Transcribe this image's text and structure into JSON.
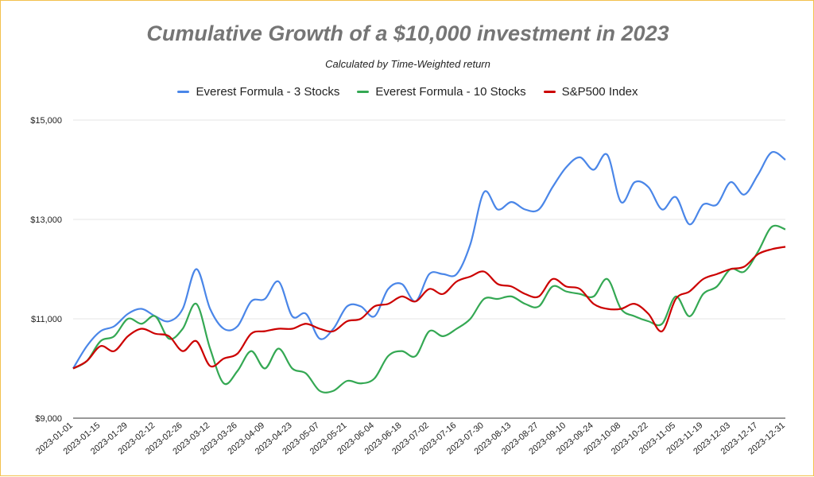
{
  "chart_data": {
    "type": "line",
    "title": "Cumulative Growth of a $10,000 investment in 2023",
    "subtitle": "Calculated by Time-Weighted return",
    "xlabel": "",
    "ylabel": "",
    "ylim": [
      9000,
      15000
    ],
    "yticks": [
      "$9,000",
      "$11,000",
      "$13,000",
      "$15,000"
    ],
    "ytick_values": [
      9000,
      11000,
      13000,
      15000
    ],
    "grid": true,
    "legend_position": "top",
    "x_tick_labels": [
      "2023-01-01",
      "2023-01-15",
      "2023-01-29",
      "2023-02-12",
      "2023-02-26",
      "2023-03-12",
      "2023-03-26",
      "2023-04-09",
      "2023-04-23",
      "2023-05-07",
      "2023-05-21",
      "2023-06-04",
      "2023-06-18",
      "2023-07-02",
      "2023-07-16",
      "2023-07-30",
      "2023-08-13",
      "2023-08-27",
      "2023-09-10",
      "2023-09-24",
      "2023-10-08",
      "2023-10-22",
      "2023-11-05",
      "2023-11-19",
      "2023-12-03",
      "2023-12-17",
      "2023-12-31"
    ],
    "x_weeks": [
      0,
      1,
      2,
      3,
      4,
      5,
      6,
      7,
      8,
      9,
      10,
      11,
      12,
      13,
      14,
      15,
      16,
      17,
      18,
      19,
      20,
      21,
      22,
      23,
      24,
      25,
      26,
      27,
      28,
      29,
      30,
      31,
      32,
      33,
      34,
      35,
      36,
      37,
      38,
      39,
      40,
      41,
      42,
      43,
      44,
      45,
      46,
      47,
      48,
      49,
      50,
      51,
      52
    ],
    "series": [
      {
        "name": "Everest Formula - 3 Stocks",
        "color": "#4a86e8",
        "values": [
          10000,
          10450,
          10750,
          10850,
          11100,
          11200,
          11050,
          10950,
          11200,
          12000,
          11200,
          10800,
          10850,
          11350,
          11400,
          11750,
          11050,
          11100,
          10600,
          10800,
          11250,
          11250,
          11050,
          11600,
          11700,
          11350,
          11900,
          11900,
          11900,
          12500,
          13550,
          13200,
          13350,
          13200,
          13200,
          13650,
          14050,
          14250,
          14000,
          14300,
          13350,
          13750,
          13650,
          13200,
          13450,
          12900,
          13300,
          13300,
          13750,
          13500,
          13900,
          14350,
          14200
        ]
      },
      {
        "name": "Everest Formula - 10 Stocks",
        "color": "#34a853",
        "values": [
          10000,
          10150,
          10550,
          10650,
          11000,
          10900,
          11050,
          10600,
          10800,
          11300,
          10400,
          9700,
          9950,
          10350,
          10000,
          10400,
          10000,
          9900,
          9550,
          9550,
          9750,
          9700,
          9800,
          10250,
          10350,
          10250,
          10750,
          10650,
          10800,
          11000,
          11400,
          11400,
          11450,
          11300,
          11250,
          11650,
          11550,
          11500,
          11450,
          11800,
          11200,
          11050,
          10950,
          10900,
          11450,
          11050,
          11500,
          11650,
          12000,
          11950,
          12350,
          12850,
          12800
        ]
      },
      {
        "name": "S&P500 Index",
        "color": "#cc0000",
        "values": [
          10000,
          10150,
          10450,
          10350,
          10650,
          10800,
          10700,
          10650,
          10350,
          10550,
          10050,
          10200,
          10300,
          10700,
          10750,
          10800,
          10800,
          10900,
          10800,
          10750,
          10950,
          11000,
          11250,
          11300,
          11450,
          11350,
          11600,
          11500,
          11750,
          11850,
          11950,
          11700,
          11650,
          11500,
          11450,
          11800,
          11650,
          11600,
          11300,
          11200,
          11200,
          11300,
          11100,
          10750,
          11400,
          11550,
          11800,
          11900,
          12000,
          12050,
          12300,
          12400,
          12450
        ]
      }
    ]
  }
}
